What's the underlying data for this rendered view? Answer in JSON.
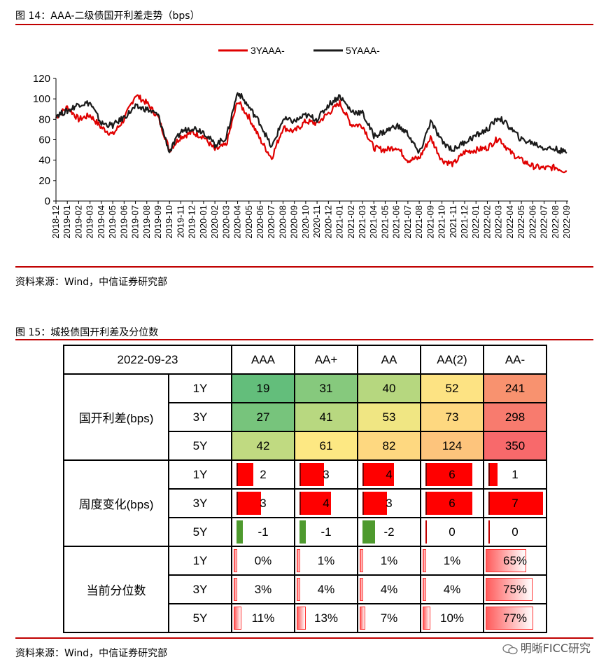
{
  "figure14": {
    "title": "图 14：AAA-二级债国开利差走势（bps）",
    "source": "资料来源：Wind，中信证券研究部"
  },
  "figure15": {
    "title": "图 15：城投债国开利差及分位数",
    "source": "资料来源：Wind，中信证券研究部"
  },
  "watermark": "明晰FICC研究",
  "colors": {
    "red": "#e00000",
    "black": "#1a1a1a",
    "rule": "#c00000",
    "green_bar": "#4e9a2e"
  },
  "chart_data": {
    "type": "line",
    "legend_placement": "top-center",
    "ylim": [
      0,
      120
    ],
    "yticks": [
      0,
      20,
      40,
      60,
      80,
      100,
      120
    ],
    "xticks": [
      "2018-12",
      "2019-01",
      "2019-02",
      "2019-03",
      "2019-04",
      "2019-05",
      "2019-06",
      "2019-07",
      "2019-08",
      "2019-09",
      "2019-10",
      "2019-11",
      "2019-12",
      "2020-01",
      "2020-02",
      "2020-03",
      "2020-04",
      "2020-05",
      "2020-06",
      "2020-07",
      "2020-08",
      "2020-09",
      "2020-10",
      "2020-11",
      "2020-12",
      "2021-01",
      "2021-02",
      "2021-03",
      "2021-04",
      "2021-05",
      "2021-06",
      "2021-07",
      "2021-08",
      "2021-09",
      "2021-10",
      "2021-11",
      "2021-12",
      "2022-01",
      "2022-02",
      "2022-03",
      "2022-04",
      "2022-05",
      "2022-06",
      "2022-07",
      "2022-08",
      "2022-09"
    ],
    "grid": false,
    "series": [
      {
        "name": "3YAAA-",
        "color": "#e00000",
        "values": [
          82,
          92,
          80,
          84,
          72,
          65,
          80,
          104,
          96,
          82,
          50,
          63,
          67,
          63,
          50,
          55,
          98,
          82,
          60,
          42,
          72,
          68,
          78,
          76,
          86,
          96,
          75,
          74,
          52,
          50,
          53,
          40,
          42,
          62,
          40,
          36,
          48,
          50,
          52,
          62,
          48,
          40,
          34,
          32,
          33,
          29
        ]
      },
      {
        "name": "5YAAA-",
        "color": "#1a1a1a",
        "values": [
          84,
          88,
          95,
          96,
          76,
          74,
          82,
          92,
          90,
          84,
          48,
          68,
          72,
          68,
          55,
          62,
          107,
          92,
          76,
          52,
          80,
          78,
          84,
          80,
          94,
          103,
          88,
          86,
          64,
          68,
          74,
          66,
          46,
          78,
          58,
          50,
          58,
          64,
          70,
          82,
          72,
          60,
          57,
          52,
          51,
          47
        ]
      }
    ]
  },
  "table": {
    "date": "2022-09-23",
    "columns": [
      "AAA",
      "AA+",
      "AA",
      "AA(2)",
      "AA-"
    ],
    "groups": [
      {
        "name": "国开利差(bps)",
        "kind": "heat",
        "rows": [
          {
            "tenor": "1Y",
            "values": [
              "19",
              "31",
              "40",
              "52",
              "241"
            ],
            "colors": [
              "#63be7b",
              "#86c97d",
              "#b6d77f",
              "#fde383",
              "#f8926f"
            ]
          },
          {
            "tenor": "3Y",
            "values": [
              "27",
              "41",
              "53",
              "73",
              "298"
            ],
            "colors": [
              "#77c47c",
              "#b8d880",
              "#f0e683",
              "#fed880",
              "#f87b6e"
            ]
          },
          {
            "tenor": "5Y",
            "values": [
              "42",
              "61",
              "82",
              "124",
              "350"
            ],
            "colors": [
              "#c0da81",
              "#fde883",
              "#fed880",
              "#fdc47c",
              "#f8696b"
            ]
          }
        ]
      },
      {
        "name": "周度变化(bps)",
        "kind": "bar",
        "rows": [
          {
            "tenor": "1Y",
            "values": [
              "2",
              "3",
              "4",
              "6",
              "1"
            ],
            "nums": [
              2,
              3,
              4,
              6,
              1
            ]
          },
          {
            "tenor": "3Y",
            "values": [
              "3",
              "4",
              "3",
              "6",
              "7"
            ],
            "nums": [
              3,
              4,
              3,
              6,
              7
            ]
          },
          {
            "tenor": "5Y",
            "values": [
              "-1",
              "-1",
              "-2",
              "0",
              "0"
            ],
            "nums": [
              -1,
              -1,
              -2,
              0,
              0
            ]
          }
        ]
      },
      {
        "name": "当前分位数",
        "kind": "pct",
        "rows": [
          {
            "tenor": "1Y",
            "values": [
              "0%",
              "1%",
              "1%",
              "1%",
              "65%"
            ],
            "nums": [
              0,
              1,
              1,
              1,
              65
            ]
          },
          {
            "tenor": "3Y",
            "values": [
              "3%",
              "4%",
              "4%",
              "4%",
              "75%"
            ],
            "nums": [
              3,
              4,
              4,
              4,
              75
            ]
          },
          {
            "tenor": "5Y",
            "values": [
              "11%",
              "13%",
              "7%",
              "10%",
              "77%"
            ],
            "nums": [
              11,
              13,
              7,
              10,
              77
            ]
          }
        ]
      }
    ]
  }
}
